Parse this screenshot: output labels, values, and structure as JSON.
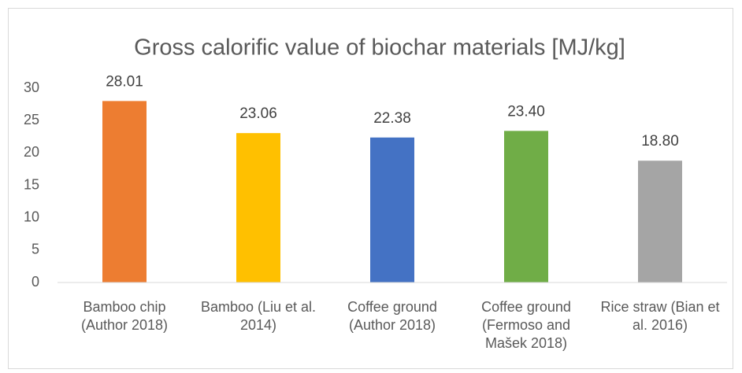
{
  "chart_data": {
    "type": "bar",
    "title": "Gross calorific value of biochar materials [MJ/kg]",
    "categories": [
      "Bamboo chip (Author 2018)",
      "Bamboo (Liu et al. 2014)",
      "Coffee ground (Author 2018)",
      "Coffee ground (Fermoso and Mašek 2018)",
      "Rice straw (Bian et al. 2016)"
    ],
    "values": [
      28.01,
      23.06,
      22.38,
      23.4,
      18.8
    ],
    "value_labels": [
      "28.01",
      "23.06",
      "22.38",
      "23.40",
      "18.80"
    ],
    "colors": [
      "#ed7d31",
      "#ffc000",
      "#4472c4",
      "#70ad47",
      "#a5a5a5"
    ],
    "ylim": [
      0,
      30
    ],
    "yticks": [
      0,
      5,
      10,
      15,
      20,
      25,
      30
    ],
    "grid": false
  }
}
